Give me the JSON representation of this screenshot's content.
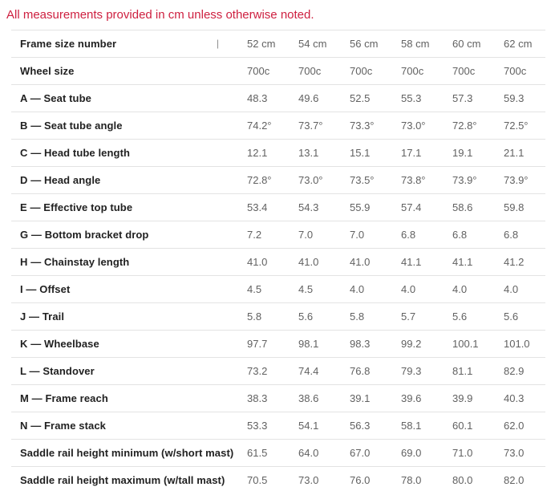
{
  "note": "All measurements provided in cm unless otherwise noted.",
  "colors": {
    "note_red": "#ce2040",
    "label_dark": "#212121",
    "value_gray": "#616161",
    "divider": "#e3e3e3"
  },
  "table": {
    "header": {
      "label": "Frame size number",
      "columns": [
        "52 cm",
        "54 cm",
        "56 cm",
        "58 cm",
        "60 cm",
        "62 cm"
      ]
    },
    "rows": [
      {
        "label": "Wheel size",
        "values": [
          "700c",
          "700c",
          "700c",
          "700c",
          "700c",
          "700c"
        ]
      },
      {
        "label": "A — Seat tube",
        "values": [
          "48.3",
          "49.6",
          "52.5",
          "55.3",
          "57.3",
          "59.3"
        ]
      },
      {
        "label": "B — Seat tube angle",
        "values": [
          "74.2°",
          "73.7°",
          "73.3°",
          "73.0°",
          "72.8°",
          "72.5°"
        ]
      },
      {
        "label": "C — Head tube length",
        "values": [
          "12.1",
          "13.1",
          "15.1",
          "17.1",
          "19.1",
          "21.1"
        ]
      },
      {
        "label": "D — Head angle",
        "values": [
          "72.8°",
          "73.0°",
          "73.5°",
          "73.8°",
          "73.9°",
          "73.9°"
        ]
      },
      {
        "label": "E — Effective top tube",
        "values": [
          "53.4",
          "54.3",
          "55.9",
          "57.4",
          "58.6",
          "59.8"
        ]
      },
      {
        "label": "G — Bottom bracket drop",
        "values": [
          "7.2",
          "7.0",
          "7.0",
          "6.8",
          "6.8",
          "6.8"
        ]
      },
      {
        "label": "H — Chainstay length",
        "values": [
          "41.0",
          "41.0",
          "41.0",
          "41.1",
          "41.1",
          "41.2"
        ]
      },
      {
        "label": "I — Offset",
        "values": [
          "4.5",
          "4.5",
          "4.0",
          "4.0",
          "4.0",
          "4.0"
        ]
      },
      {
        "label": "J — Trail",
        "values": [
          "5.8",
          "5.6",
          "5.8",
          "5.7",
          "5.6",
          "5.6"
        ]
      },
      {
        "label": "K — Wheelbase",
        "values": [
          "97.7",
          "98.1",
          "98.3",
          "99.2",
          "100.1",
          "101.0"
        ]
      },
      {
        "label": "L — Standover",
        "values": [
          "73.2",
          "74.4",
          "76.8",
          "79.3",
          "81.1",
          "82.9"
        ]
      },
      {
        "label": "M — Frame reach",
        "values": [
          "38.3",
          "38.6",
          "39.1",
          "39.6",
          "39.9",
          "40.3"
        ]
      },
      {
        "label": "N — Frame stack",
        "values": [
          "53.3",
          "54.1",
          "56.3",
          "58.1",
          "60.1",
          "62.0"
        ]
      },
      {
        "label": "Saddle rail height minimum (w/short mast)",
        "values": [
          "61.5",
          "64.0",
          "67.0",
          "69.0",
          "71.0",
          "73.0"
        ]
      },
      {
        "label": "Saddle rail height maximum (w/tall mast)",
        "values": [
          "70.5",
          "73.0",
          "76.0",
          "78.0",
          "80.0",
          "82.0"
        ]
      }
    ]
  }
}
